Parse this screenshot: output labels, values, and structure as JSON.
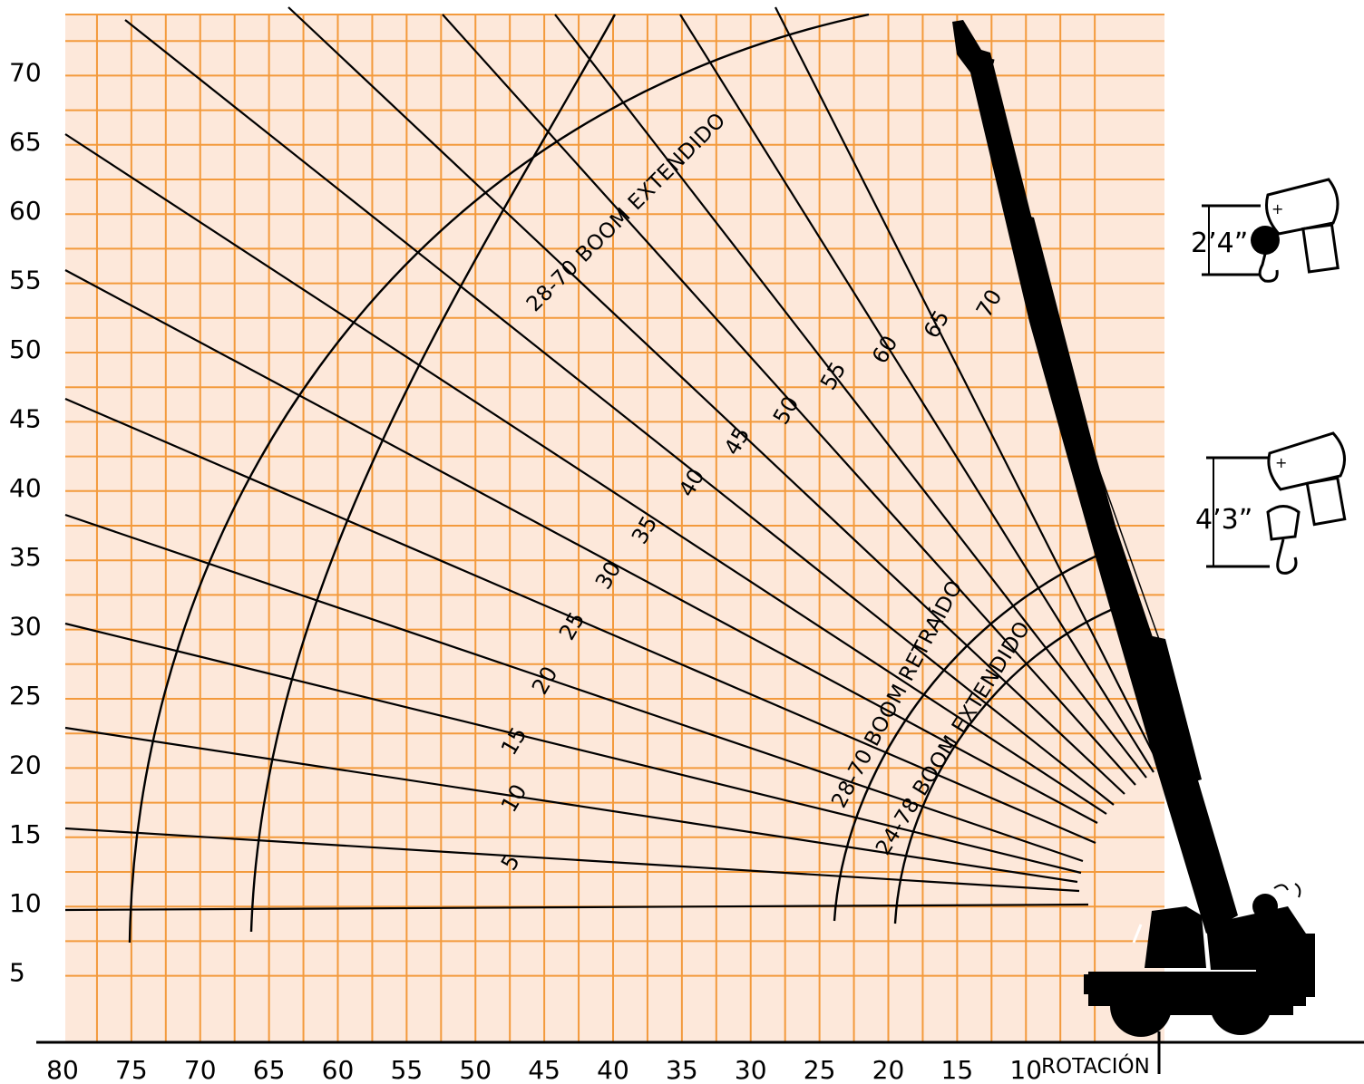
{
  "chart_data": {
    "type": "line",
    "title": "",
    "x_axis": {
      "ticks": [
        "80",
        "75",
        "70",
        "65",
        "60",
        "55",
        "50",
        "45",
        "40",
        "35",
        "30",
        "25",
        "20",
        "15",
        "10"
      ],
      "end_label": "ROTACIÓN",
      "range": [
        80,
        0
      ]
    },
    "y_axis": {
      "ticks": [
        "5",
        "10",
        "15",
        "20",
        "25",
        "30",
        "35",
        "40",
        "45",
        "50",
        "55",
        "60",
        "65",
        "70"
      ],
      "range": [
        0,
        73
      ]
    },
    "grid": true,
    "boom_angle_labels": [
      "5",
      "10",
      "15",
      "20",
      "25",
      "30",
      "35",
      "40",
      "45",
      "50",
      "55",
      "60",
      "65",
      "70"
    ],
    "arcs": [
      {
        "label": "28-70 BOOM EXTENDIDO",
        "bottom_x": 75
      },
      {
        "label": "",
        "bottom_x": 66
      },
      {
        "label": "28-70 BOOM RETRAÍDO",
        "bottom_x": 24
      },
      {
        "label": "24-78 BOOM EXTENDIDO",
        "bottom_x": 19.5
      }
    ],
    "hook_blocks": [
      {
        "dimension": "2’4”"
      },
      {
        "dimension": "4’3”"
      }
    ],
    "colors": {
      "background": "#fde8da",
      "grid": "#f39a3c",
      "lines": "#000000"
    }
  }
}
